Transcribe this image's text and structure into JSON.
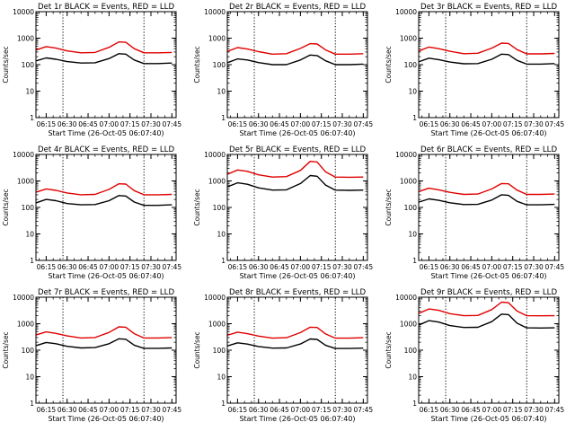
{
  "chart_data": [
    {
      "type": "line",
      "title": "Det 1r BLACK = Events, RED = LLD",
      "xlabel": "Start Time (26-Oct-05 06:07:40)",
      "ylabel": "Counts/sec",
      "x_ticks": [
        "06:15",
        "06:30",
        "06:45",
        "07:00",
        "07:15",
        "07:30",
        "07:45"
      ],
      "y_ticks": [
        "1",
        "10",
        "100",
        "1000",
        "10000"
      ],
      "yscale": "log",
      "ylim": [
        1,
        10000
      ],
      "xlim": [
        "06:07:40",
        "07:48:00"
      ],
      "vlines": [
        "06:27",
        "07:25"
      ],
      "series": [
        {
          "color": "#000000",
          "x": [
            "06:08",
            "06:15",
            "06:22",
            "06:30",
            "06:40",
            "06:50",
            "07:00",
            "07:07",
            "07:12",
            "07:18",
            "07:25",
            "07:35",
            "07:45"
          ],
          "y": [
            140,
            180,
            160,
            130,
            115,
            118,
            170,
            260,
            250,
            150,
            110,
            110,
            115
          ]
        },
        {
          "color": "#e00000",
          "x": [
            "06:08",
            "06:15",
            "06:22",
            "06:30",
            "06:40",
            "06:50",
            "07:00",
            "07:07",
            "07:12",
            "07:18",
            "07:25",
            "07:35",
            "07:45"
          ],
          "y": [
            360,
            480,
            420,
            330,
            280,
            290,
            450,
            720,
            700,
            400,
            280,
            280,
            290
          ]
        }
      ]
    },
    {
      "type": "line",
      "title": "Det 2r BLACK = Events, RED = LLD",
      "xlabel": "Start Time (26-Oct-05 06:07:40)",
      "ylabel": "Counts/sec",
      "x_ticks": [
        "06:15",
        "06:30",
        "06:45",
        "07:00",
        "07:15",
        "07:30",
        "07:45"
      ],
      "y_ticks": [
        "1",
        "10",
        "100",
        "1000",
        "10000"
      ],
      "yscale": "log",
      "ylim": [
        1,
        10000
      ],
      "xlim": [
        "06:07:40",
        "07:48:00"
      ],
      "vlines": [
        "06:27",
        "07:25"
      ],
      "series": [
        {
          "color": "#000000",
          "x": [
            "06:08",
            "06:15",
            "06:22",
            "06:30",
            "06:40",
            "06:50",
            "07:00",
            "07:07",
            "07:12",
            "07:18",
            "07:25",
            "07:35",
            "07:45"
          ],
          "y": [
            120,
            165,
            150,
            120,
            100,
            100,
            150,
            230,
            220,
            140,
            100,
            100,
            105
          ]
        },
        {
          "color": "#e00000",
          "x": [
            "06:08",
            "06:15",
            "06:22",
            "06:30",
            "06:40",
            "06:50",
            "07:00",
            "07:07",
            "07:12",
            "07:18",
            "07:25",
            "07:35",
            "07:45"
          ],
          "y": [
            320,
            440,
            390,
            310,
            250,
            260,
            410,
            620,
            600,
            360,
            250,
            250,
            260
          ]
        }
      ]
    },
    {
      "type": "line",
      "title": "Det 3r BLACK = Events, RED = LLD",
      "xlabel": "Start Time (26-Oct-05 06:07:40)",
      "ylabel": "Counts/sec",
      "x_ticks": [
        "06:15",
        "06:30",
        "06:45",
        "07:00",
        "07:15",
        "07:30",
        "07:45"
      ],
      "y_ticks": [
        "1",
        "10",
        "100",
        "1000",
        "10000"
      ],
      "yscale": "log",
      "ylim": [
        1,
        10000
      ],
      "xlim": [
        "06:07:40",
        "07:48:00"
      ],
      "vlines": [
        "06:27",
        "07:25"
      ],
      "series": [
        {
          "color": "#000000",
          "x": [
            "06:08",
            "06:15",
            "06:22",
            "06:30",
            "06:40",
            "06:50",
            "07:00",
            "07:07",
            "07:12",
            "07:18",
            "07:25",
            "07:35",
            "07:45"
          ],
          "y": [
            130,
            175,
            155,
            125,
            108,
            110,
            160,
            250,
            240,
            145,
            105,
            105,
            110
          ]
        },
        {
          "color": "#e00000",
          "x": [
            "06:08",
            "06:15",
            "06:22",
            "06:30",
            "06:40",
            "06:50",
            "07:00",
            "07:07",
            "07:12",
            "07:18",
            "07:25",
            "07:35",
            "07:45"
          ],
          "y": [
            330,
            460,
            400,
            320,
            260,
            270,
            420,
            650,
            630,
            370,
            255,
            255,
            265
          ]
        }
      ]
    },
    {
      "type": "line",
      "title": "Det 4r BLACK = Events, RED = LLD",
      "xlabel": "Start Time (26-Oct-05 06:07:40)",
      "ylabel": "Counts/sec",
      "x_ticks": [
        "06:15",
        "06:30",
        "06:45",
        "07:00",
        "07:15",
        "07:30",
        "07:45"
      ],
      "y_ticks": [
        "1",
        "10",
        "100",
        "1000",
        "10000"
      ],
      "yscale": "log",
      "ylim": [
        1,
        10000
      ],
      "xlim": [
        "06:07:40",
        "07:48:00"
      ],
      "vlines": [
        "06:27",
        "07:25"
      ],
      "series": [
        {
          "color": "#000000",
          "x": [
            "06:08",
            "06:15",
            "06:22",
            "06:30",
            "06:40",
            "06:50",
            "07:00",
            "07:07",
            "07:12",
            "07:18",
            "07:25",
            "07:35",
            "07:45"
          ],
          "y": [
            150,
            200,
            180,
            140,
            125,
            128,
            180,
            280,
            270,
            160,
            120,
            120,
            125
          ]
        },
        {
          "color": "#e00000",
          "x": [
            "06:08",
            "06:15",
            "06:22",
            "06:30",
            "06:40",
            "06:50",
            "07:00",
            "07:07",
            "07:12",
            "07:18",
            "07:25",
            "07:35",
            "07:45"
          ],
          "y": [
            380,
            500,
            440,
            350,
            300,
            310,
            480,
            780,
            760,
            430,
            300,
            300,
            310
          ]
        }
      ]
    },
    {
      "type": "line",
      "title": "Det 5r BLACK = Events, RED = LLD",
      "xlabel": "Start Time (26-Oct-05 06:07:40)",
      "ylabel": "Counts/sec",
      "x_ticks": [
        "06:15",
        "06:30",
        "06:45",
        "07:00",
        "07:15",
        "07:30",
        "07:45"
      ],
      "y_ticks": [
        "1",
        "10",
        "100",
        "1000",
        "10000"
      ],
      "yscale": "log",
      "ylim": [
        1,
        10000
      ],
      "xlim": [
        "06:07:40",
        "07:48:00"
      ],
      "vlines": [
        "06:27",
        "07:25"
      ],
      "series": [
        {
          "color": "#000000",
          "x": [
            "06:08",
            "06:15",
            "06:22",
            "06:30",
            "06:40",
            "06:50",
            "07:00",
            "07:07",
            "07:12",
            "07:18",
            "07:25",
            "07:35",
            "07:45"
          ],
          "y": [
            600,
            850,
            750,
            550,
            450,
            460,
            800,
            1600,
            1500,
            700,
            450,
            440,
            450
          ]
        },
        {
          "color": "#e00000",
          "x": [
            "06:08",
            "06:15",
            "06:22",
            "06:30",
            "06:40",
            "06:50",
            "07:00",
            "07:07",
            "07:12",
            "07:18",
            "07:25",
            "07:35",
            "07:45"
          ],
          "y": [
            1800,
            2600,
            2300,
            1700,
            1400,
            1450,
            2500,
            5500,
            5200,
            2200,
            1400,
            1380,
            1400
          ]
        }
      ]
    },
    {
      "type": "line",
      "title": "Det 6r BLACK = Events, RED = LLD",
      "xlabel": "Start Time (26-Oct-05 06:07:40)",
      "ylabel": "Counts/sec",
      "x_ticks": [
        "06:15",
        "06:30",
        "06:45",
        "07:00",
        "07:15",
        "07:30",
        "07:45"
      ],
      "y_ticks": [
        "1",
        "10",
        "100",
        "1000",
        "10000"
      ],
      "yscale": "log",
      "ylim": [
        1,
        10000
      ],
      "xlim": [
        "06:07:40",
        "07:48:00"
      ],
      "vlines": [
        "06:27",
        "07:25"
      ],
      "series": [
        {
          "color": "#000000",
          "x": [
            "06:08",
            "06:15",
            "06:22",
            "06:30",
            "06:40",
            "06:50",
            "07:00",
            "07:07",
            "07:12",
            "07:18",
            "07:25",
            "07:35",
            "07:45"
          ],
          "y": [
            160,
            210,
            185,
            150,
            128,
            130,
            190,
            300,
            285,
            170,
            125,
            125,
            130
          ]
        },
        {
          "color": "#e00000",
          "x": [
            "06:08",
            "06:15",
            "06:22",
            "06:30",
            "06:40",
            "06:50",
            "07:00",
            "07:07",
            "07:12",
            "07:18",
            "07:25",
            "07:35",
            "07:45"
          ],
          "y": [
            400,
            530,
            460,
            370,
            310,
            320,
            500,
            800,
            780,
            450,
            310,
            310,
            320
          ]
        }
      ]
    },
    {
      "type": "line",
      "title": "Det 7r BLACK = Events, RED = LLD",
      "xlabel": "Start Time (26-Oct-05 06:07:40)",
      "ylabel": "Counts/sec",
      "x_ticks": [
        "06:15",
        "06:30",
        "06:45",
        "07:00",
        "07:15",
        "07:30",
        "07:45"
      ],
      "y_ticks": [
        "1",
        "10",
        "100",
        "1000",
        "10000"
      ],
      "yscale": "log",
      "ylim": [
        1,
        10000
      ],
      "xlim": [
        "06:07:40",
        "07:48:00"
      ],
      "vlines": [
        "06:27",
        "07:25"
      ],
      "series": [
        {
          "color": "#000000",
          "x": [
            "06:08",
            "06:15",
            "06:22",
            "06:30",
            "06:40",
            "06:50",
            "07:00",
            "07:07",
            "07:12",
            "07:18",
            "07:25",
            "07:35",
            "07:45"
          ],
          "y": [
            150,
            195,
            175,
            140,
            122,
            125,
            175,
            270,
            260,
            155,
            118,
            118,
            122
          ]
        },
        {
          "color": "#e00000",
          "x": [
            "06:08",
            "06:15",
            "06:22",
            "06:30",
            "06:40",
            "06:50",
            "07:00",
            "07:07",
            "07:12",
            "07:18",
            "07:25",
            "07:35",
            "07:45"
          ],
          "y": [
            380,
            490,
            430,
            345,
            290,
            300,
            470,
            760,
            740,
            420,
            290,
            290,
            300
          ]
        }
      ]
    },
    {
      "type": "line",
      "title": "Det 8r BLACK = Events, RED = LLD",
      "xlabel": "Start Time (26-Oct-05 06:07:40)",
      "ylabel": "Counts/sec",
      "x_ticks": [
        "06:15",
        "06:30",
        "06:45",
        "07:00",
        "07:15",
        "07:30",
        "07:45"
      ],
      "y_ticks": [
        "1",
        "10",
        "100",
        "1000",
        "10000"
      ],
      "yscale": "log",
      "ylim": [
        1,
        10000
      ],
      "xlim": [
        "06:07:40",
        "07:48:00"
      ],
      "vlines": [
        "06:27",
        "07:25"
      ],
      "series": [
        {
          "color": "#000000",
          "x": [
            "06:08",
            "06:15",
            "06:22",
            "06:30",
            "06:40",
            "06:50",
            "07:00",
            "07:07",
            "07:12",
            "07:18",
            "07:25",
            "07:35",
            "07:45"
          ],
          "y": [
            145,
            190,
            170,
            138,
            120,
            122,
            172,
            265,
            255,
            152,
            116,
            116,
            120
          ]
        },
        {
          "color": "#e00000",
          "x": [
            "06:08",
            "06:15",
            "06:22",
            "06:30",
            "06:40",
            "06:50",
            "07:00",
            "07:07",
            "07:12",
            "07:18",
            "07:25",
            "07:35",
            "07:45"
          ],
          "y": [
            370,
            480,
            420,
            340,
            285,
            295,
            460,
            740,
            720,
            410,
            285,
            285,
            295
          ]
        }
      ]
    },
    {
      "type": "line",
      "title": "Det 9r BLACK = Events, RED = LLD",
      "xlabel": "Start Time (26-Oct-05 06:07:40)",
      "ylabel": "Counts/sec",
      "x_ticks": [
        "06:15",
        "06:30",
        "06:45",
        "07:00",
        "07:15",
        "07:30",
        "07:45"
      ],
      "y_ticks": [
        "1",
        "10",
        "100",
        "1000",
        "10000"
      ],
      "yscale": "log",
      "ylim": [
        1,
        10000
      ],
      "xlim": [
        "06:07:40",
        "07:48:00"
      ],
      "vlines": [
        "06:27",
        "07:25"
      ],
      "series": [
        {
          "color": "#000000",
          "x": [
            "06:08",
            "06:15",
            "06:22",
            "06:30",
            "06:40",
            "06:50",
            "07:00",
            "07:07",
            "07:12",
            "07:18",
            "07:25",
            "07:35",
            "07:45"
          ],
          "y": [
            900,
            1300,
            1150,
            850,
            720,
            730,
            1200,
            2300,
            2200,
            1050,
            700,
            690,
            700
          ]
        },
        {
          "color": "#e00000",
          "x": [
            "06:08",
            "06:15",
            "06:22",
            "06:30",
            "06:40",
            "06:50",
            "07:00",
            "07:07",
            "07:12",
            "07:18",
            "07:25",
            "07:35",
            "07:45"
          ],
          "y": [
            2500,
            3600,
            3200,
            2400,
            2000,
            2050,
            3400,
            6500,
            6200,
            3000,
            2000,
            1980,
            2000
          ]
        }
      ]
    }
  ]
}
